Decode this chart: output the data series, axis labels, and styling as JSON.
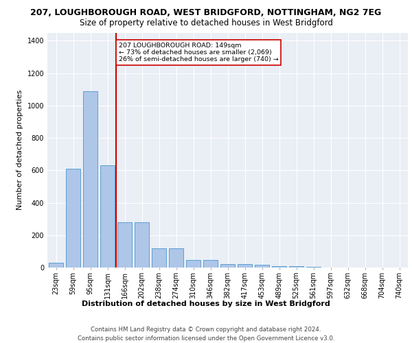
{
  "title_line1": "207, LOUGHBOROUGH ROAD, WEST BRIDGFORD, NOTTINGHAM, NG2 7EG",
  "title_line2": "Size of property relative to detached houses in West Bridgford",
  "xlabel": "Distribution of detached houses by size in West Bridgford",
  "ylabel": "Number of detached properties",
  "bin_labels": [
    "23sqm",
    "59sqm",
    "95sqm",
    "131sqm",
    "166sqm",
    "202sqm",
    "238sqm",
    "274sqm",
    "310sqm",
    "346sqm",
    "382sqm",
    "417sqm",
    "453sqm",
    "489sqm",
    "525sqm",
    "561sqm",
    "597sqm",
    "632sqm",
    "668sqm",
    "704sqm",
    "740sqm"
  ],
  "bar_values": [
    30,
    610,
    1090,
    630,
    280,
    280,
    120,
    120,
    45,
    45,
    20,
    20,
    15,
    10,
    8,
    3,
    2,
    1,
    1,
    0,
    0
  ],
  "bar_color": "#aec6e8",
  "bar_edge_color": "#5a9fd4",
  "vertical_line_x": 3,
  "vertical_line_color": "#cc0000",
  "annotation_text": "207 LOUGHBOROUGH ROAD: 149sqm\n← 73% of detached houses are smaller (2,069)\n26% of semi-detached houses are larger (740) →",
  "annotation_box_color": "#ffffff",
  "annotation_box_edge": "#cc0000",
  "ylim": [
    0,
    1450
  ],
  "yticks": [
    0,
    200,
    400,
    600,
    800,
    1000,
    1200,
    1400
  ],
  "bg_color": "#eaeef5",
  "footer_line1": "Contains HM Land Registry data © Crown copyright and database right 2024.",
  "footer_line2": "Contains public sector information licensed under the Open Government Licence v3.0.",
  "title_fontsize": 9,
  "subtitle_fontsize": 8.5,
  "axis_label_fontsize": 8,
  "tick_fontsize": 7,
  "ylabel_fontsize": 8
}
